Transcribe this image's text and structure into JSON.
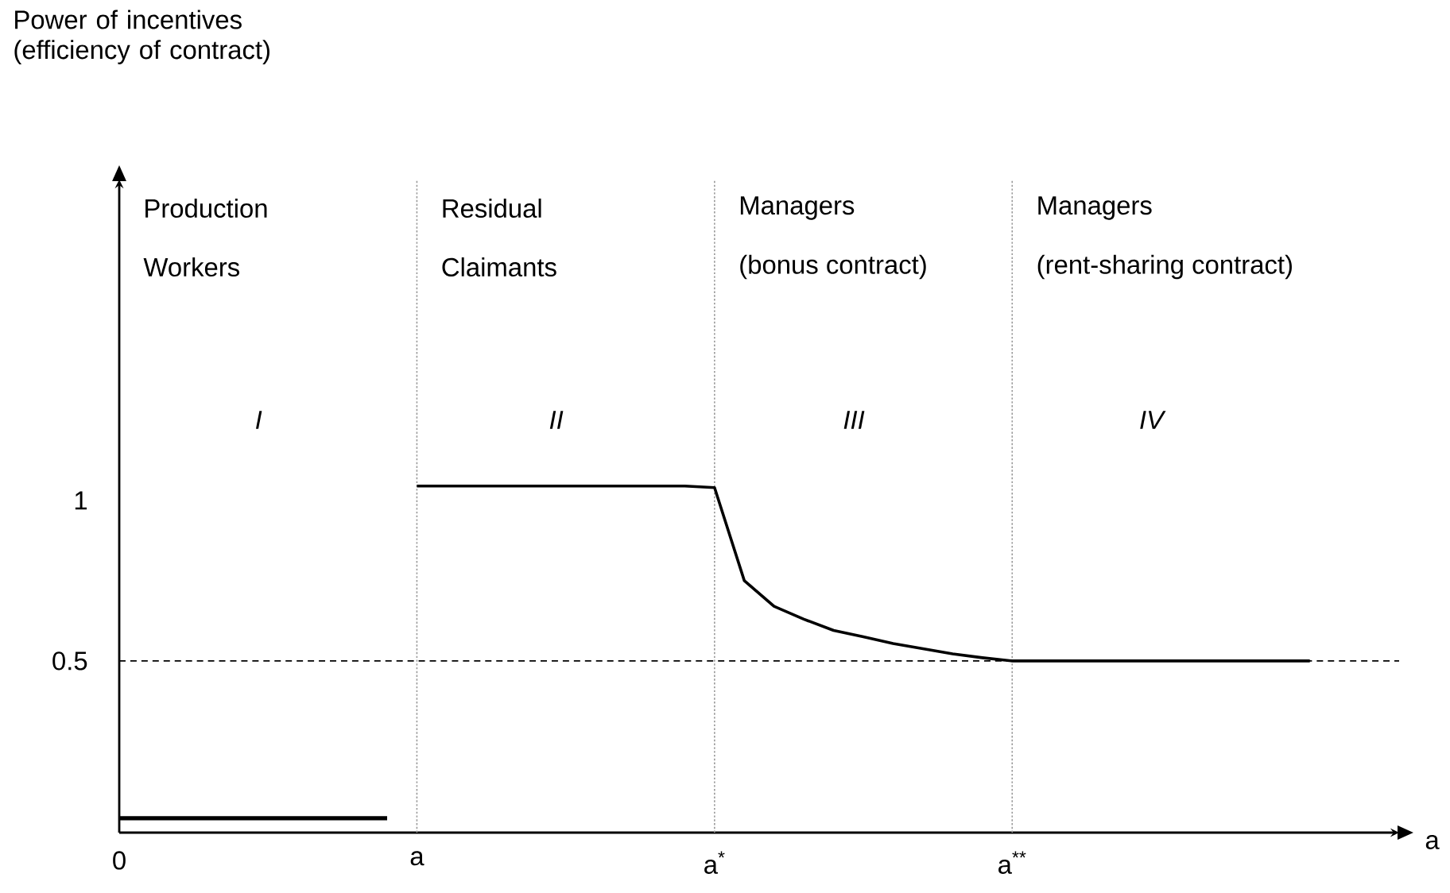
{
  "chart_data": {
    "type": "line",
    "ylabel": "Power of incentives (efficiency of contract)",
    "xlabel": "a",
    "categories": [
      "0",
      null,
      null,
      null,
      null,
      null,
      null,
      null,
      null,
      null,
      "a",
      null,
      null,
      null,
      null,
      null,
      null,
      null,
      null,
      null,
      "a$^{*}$",
      null,
      null,
      null,
      null,
      null,
      null,
      null,
      null,
      null,
      "a$^{**}$",
      null,
      null,
      null,
      null,
      null,
      null,
      null,
      null,
      null,
      null,
      null,
      null,
      null
    ],
    "ylim": [
      -0.035,
      2.0
    ],
    "yticks": [
      0.5,
      1
    ],
    "series": [
      {
        "color": "#000000",
        "values": [
          0.01,
          0.01,
          0.01,
          0.01,
          0.01,
          0.01,
          0.01,
          0.01,
          0.01,
          0.01,
          null,
          null,
          null,
          null,
          null,
          null,
          null,
          null,
          null,
          null,
          null,
          null,
          null,
          null,
          null,
          null,
          null,
          null,
          null,
          null,
          null,
          null,
          null,
          null,
          null,
          null,
          null,
          null,
          null,
          null,
          null,
          null,
          null,
          null
        ]
      },
      {
        "color": "#000000",
        "values": [
          null,
          null,
          null,
          null,
          null,
          null,
          null,
          null,
          null,
          null,
          1.045,
          1.045,
          1.045,
          1.045,
          1.045,
          1.045,
          1.045,
          1.045,
          1.045,
          1.045,
          1.04,
          0.75,
          0.67,
          0.63,
          0.595,
          0.575,
          0.554,
          0.538,
          0.522,
          0.51,
          0.5,
          0.5,
          0.5,
          0.5,
          0.5,
          0.5,
          0.5,
          0.5,
          0.5,
          0.5,
          0.5,
          null,
          null,
          null
        ]
      }
    ],
    "ref_lines": [
      {
        "axis": "x",
        "value": "a",
        "color": "#999999",
        "line_style": "dotted"
      },
      {
        "axis": "x",
        "value": "a$^{*}$",
        "color": "#999999",
        "line_style": "dotted"
      },
      {
        "axis": "x",
        "value": "a$^{**}$",
        "color": "#999999",
        "line_style": "dotted"
      },
      {
        "axis": "y",
        "value": 0.5,
        "color": "#000000",
        "line_style": "dashed"
      }
    ],
    "annotations": [
      "Production",
      "Workers",
      "Residual",
      "Claimants",
      "Managers",
      "(bonus contract)",
      "Managers",
      "(rent-sharing contract)",
      "I",
      "II",
      "III",
      "IV"
    ]
  }
}
